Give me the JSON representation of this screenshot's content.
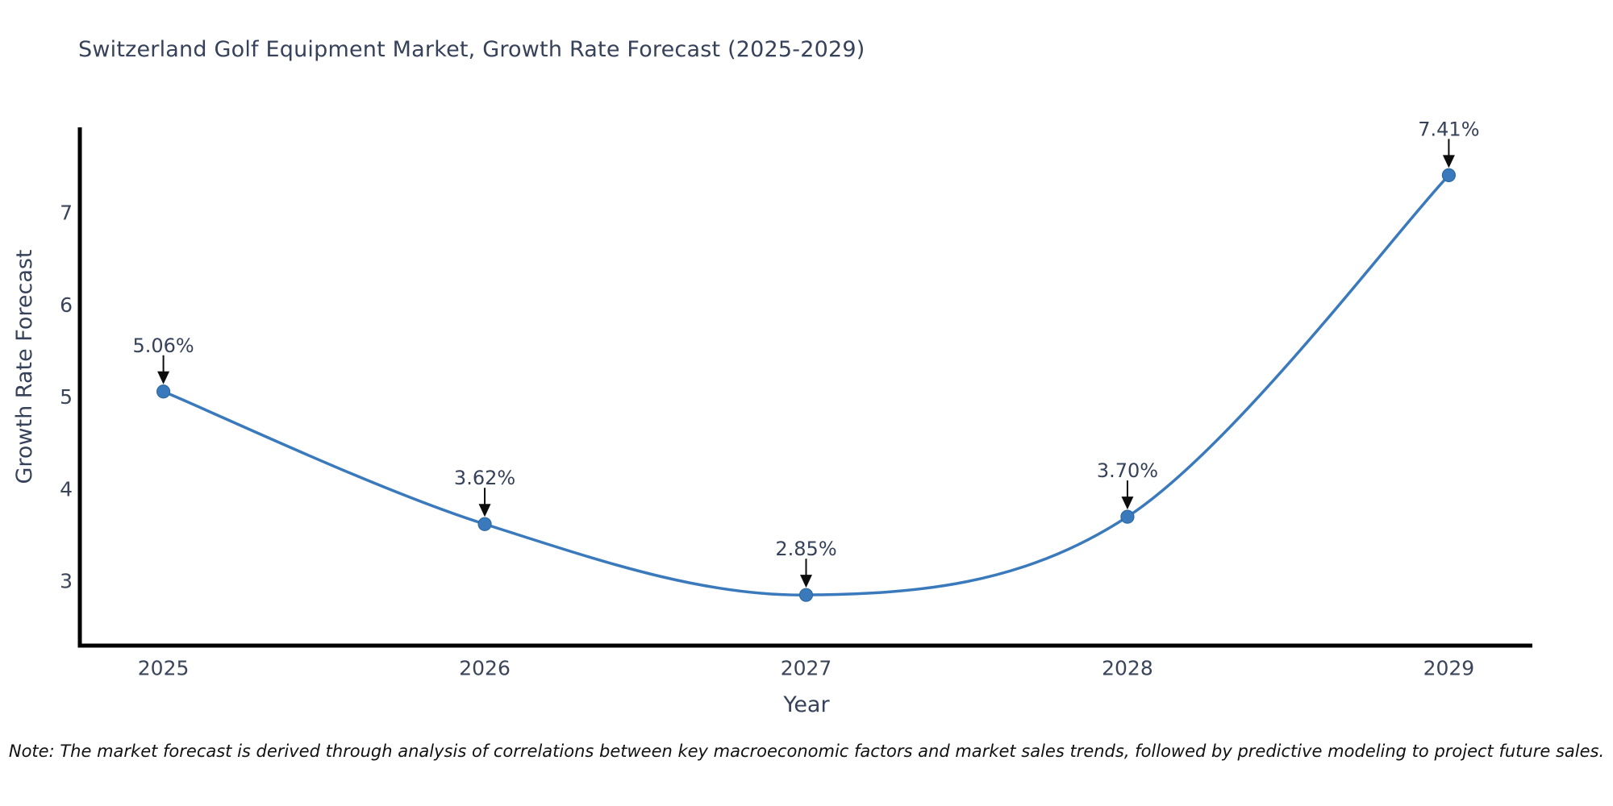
{
  "chart_data": {
    "type": "line",
    "title": "Switzerland Golf Equipment Market, Growth Rate Forecast (2025-2029)",
    "xlabel": "Year",
    "ylabel": "Growth Rate Forecast",
    "x": [
      2025,
      2026,
      2027,
      2028,
      2029
    ],
    "categories": [
      "2025",
      "2026",
      "2027",
      "2028",
      "2029"
    ],
    "values": [
      5.06,
      3.62,
      2.85,
      3.7,
      7.41
    ],
    "point_labels": [
      "5.06%",
      "3.62%",
      "2.85%",
      "3.70%",
      "7.41%"
    ],
    "yticks": [
      3,
      4,
      5,
      6,
      7
    ],
    "ylim": [
      2.3,
      7.93
    ],
    "xlim": [
      2024.74,
      2029.26
    ],
    "grid": false,
    "legend": "none",
    "colors": {
      "line": "#3a7abc",
      "marker_fill": "#3a7abc",
      "marker_edge": "#2d6aa3",
      "arrow": "#0d0d0d",
      "spine": "#000000",
      "tick_text": "#3b4559",
      "title_text": "#36415a"
    }
  },
  "note": "Note: The market forecast is derived through analysis of correlations between key macroeconomic factors and market sales trends, followed by predictive modeling to project future sales."
}
